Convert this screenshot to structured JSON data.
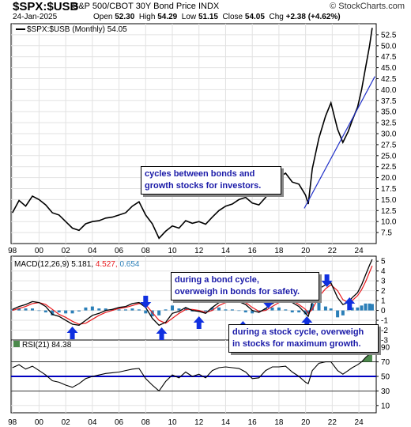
{
  "header": {
    "symbol": "$SPX:$USB",
    "description": "S&P 500/CBOT 30Y Bond Price INDX",
    "brand": "© StockCharts.com",
    "date": "24-Jan-2025",
    "open_label": "Open",
    "open": "52.30",
    "high_label": "High",
    "high": "54.29",
    "low_label": "Low",
    "low": "51.15",
    "close_label": "Close",
    "close": "54.05",
    "chg_label": "Chg",
    "chg": "+2.38 (+4.62%)"
  },
  "annotations": {
    "note1": "cycles between bonds and\ngrowth stocks for investors.",
    "note2": "during a bond cycle,\noverweigh in bonds for safety.",
    "note3": "during a stock cycle, overweigh\nin stocks for maximum growth."
  },
  "colors": {
    "price": "#000000",
    "macd": "#000000",
    "signal": "#e8181c",
    "histogram": "#2b7fb8",
    "trendline": "#2030c8",
    "arrow": "#1030e0",
    "rsi_line": "#000000",
    "rsi_fill": "#4d8a4d",
    "rsi_mid_line": "#0000c0"
  },
  "chart_data": [
    {
      "type": "line",
      "legend": "$SPX:$USB (Monthly) 54.05",
      "x_ticks": [
        "98",
        "00",
        "02",
        "04",
        "06",
        "08",
        "10",
        "12",
        "14",
        "16",
        "18",
        "20",
        "22",
        "24"
      ],
      "y_ticks": [
        "7.5",
        "10.0",
        "12.5",
        "15.0",
        "17.5",
        "20.0",
        "22.5",
        "25.0",
        "27.5",
        "30.0",
        "32.5",
        "35.0",
        "37.5",
        "40.0",
        "42.5",
        "45.0",
        "47.5",
        "50.0",
        "52.5"
      ],
      "ylim": [
        5,
        55
      ],
      "x": [
        1998.0,
        1998.5,
        1999.0,
        1999.5,
        2000.0,
        2000.5,
        2001.0,
        2001.5,
        2002.0,
        2002.5,
        2003.0,
        2003.5,
        2004.0,
        2004.5,
        2005.0,
        2005.5,
        2006.0,
        2006.5,
        2007.0,
        2007.5,
        2008.0,
        2008.5,
        2009.0,
        2009.5,
        2010.0,
        2010.5,
        2011.0,
        2011.5,
        2012.0,
        2012.5,
        2013.0,
        2013.5,
        2014.0,
        2014.5,
        2015.0,
        2015.5,
        2016.0,
        2016.5,
        2017.0,
        2017.5,
        2018.0,
        2018.5,
        2019.0,
        2019.5,
        2020.0,
        2020.2,
        2020.5,
        2021.0,
        2021.5,
        2021.9,
        2022.4,
        2022.8,
        2023.2,
        2023.5,
        2023.9,
        2024.2,
        2024.5,
        2024.8,
        2025.0
      ],
      "values": [
        12.0,
        14.8,
        13.5,
        15.8,
        15.0,
        13.8,
        12.0,
        11.5,
        10.0,
        8.5,
        8.0,
        9.5,
        10.0,
        10.2,
        10.8,
        11.0,
        11.5,
        12.0,
        13.5,
        14.5,
        11.5,
        9.5,
        6.2,
        7.8,
        9.0,
        8.5,
        10.2,
        9.6,
        10.0,
        9.4,
        11.0,
        12.5,
        13.5,
        14.0,
        15.0,
        15.5,
        14.2,
        13.8,
        15.5,
        17.8,
        20.0,
        21.0,
        19.0,
        18.5,
        16.0,
        14.0,
        22.0,
        29.0,
        34.0,
        37.0,
        31.0,
        28.0,
        30.5,
        33.0,
        36.0,
        40.0,
        45.0,
        50.0,
        54.05
      ],
      "trendline": {
        "x": [
          2019.9,
          2025.2
        ],
        "y": [
          13.0,
          43.0
        ]
      }
    },
    {
      "type": "line",
      "legend": "MACD(12,26,9)",
      "values_label": [
        "5.181",
        "4.527",
        "0.654"
      ],
      "y_ticks": [
        "-3",
        "-2",
        "-1",
        "0",
        "1",
        "2",
        "3",
        "4",
        "5"
      ],
      "ylim": [
        -3,
        5.5
      ],
      "series": [
        {
          "name": "MACD",
          "x": [
            1998.0,
            1998.5,
            1999.0,
            1999.5,
            2000.0,
            2000.5,
            2001.0,
            2001.5,
            2002.0,
            2002.5,
            2003.0,
            2003.5,
            2004.0,
            2004.5,
            2005.0,
            2005.5,
            2006.0,
            2006.5,
            2007.0,
            2007.5,
            2008.0,
            2008.5,
            2009.0,
            2009.5,
            2010.0,
            2010.5,
            2011.0,
            2011.5,
            2012.0,
            2012.5,
            2013.0,
            2013.5,
            2014.0,
            2014.5,
            2015.0,
            2015.5,
            2016.0,
            2016.5,
            2017.0,
            2017.5,
            2018.0,
            2018.5,
            2019.0,
            2019.5,
            2020.0,
            2020.2,
            2020.5,
            2021.0,
            2021.5,
            2021.9,
            2022.4,
            2022.8,
            2023.2,
            2023.5,
            2023.9,
            2024.2,
            2024.5,
            2024.8,
            2025.0
          ],
          "values": [
            0.1,
            0.4,
            0.6,
            0.9,
            0.8,
            0.4,
            -0.4,
            -0.6,
            -1.0,
            -1.4,
            -1.5,
            -1.0,
            -0.5,
            -0.3,
            0.0,
            0.1,
            0.3,
            0.4,
            0.7,
            0.8,
            0.3,
            -0.8,
            -1.5,
            -1.2,
            -0.3,
            -0.1,
            0.3,
            0.0,
            -0.1,
            -0.3,
            0.3,
            0.8,
            0.9,
            1.0,
            0.9,
            0.6,
            0.0,
            -0.2,
            0.2,
            0.7,
            1.1,
            1.2,
            0.8,
            0.4,
            -0.3,
            -0.6,
            0.8,
            2.2,
            2.6,
            2.8,
            1.3,
            0.6,
            0.8,
            1.3,
            1.8,
            2.6,
            3.6,
            4.6,
            5.181
          ]
        },
        {
          "name": "Signal",
          "x": [
            1998.0,
            1998.5,
            1999.0,
            1999.5,
            2000.0,
            2000.5,
            2001.0,
            2001.5,
            2002.0,
            2002.5,
            2003.0,
            2003.5,
            2004.0,
            2004.5,
            2005.0,
            2005.5,
            2006.0,
            2006.5,
            2007.0,
            2007.5,
            2008.0,
            2008.5,
            2009.0,
            2009.5,
            2010.0,
            2010.5,
            2011.0,
            2011.5,
            2012.0,
            2012.5,
            2013.0,
            2013.5,
            2014.0,
            2014.5,
            2015.0,
            2015.5,
            2016.0,
            2016.5,
            2017.0,
            2017.5,
            2018.0,
            2018.5,
            2019.0,
            2019.5,
            2020.0,
            2020.2,
            2020.5,
            2021.0,
            2021.5,
            2021.9,
            2022.4,
            2022.8,
            2023.2,
            2023.5,
            2023.9,
            2024.2,
            2024.5,
            2024.8,
            2025.0
          ],
          "values": [
            0.0,
            0.2,
            0.4,
            0.7,
            0.8,
            0.6,
            0.1,
            -0.4,
            -0.7,
            -1.1,
            -1.4,
            -1.3,
            -0.9,
            -0.5,
            -0.2,
            0.0,
            0.2,
            0.3,
            0.5,
            0.7,
            0.6,
            -0.2,
            -1.0,
            -1.3,
            -0.8,
            -0.3,
            0.1,
            0.1,
            0.0,
            -0.2,
            0.0,
            0.5,
            0.8,
            0.9,
            0.9,
            0.8,
            0.3,
            -0.1,
            0.0,
            0.4,
            0.8,
            1.1,
            1.0,
            0.6,
            0.1,
            -0.3,
            0.1,
            1.4,
            2.2,
            2.6,
            2.0,
            1.1,
            0.8,
            1.0,
            1.5,
            2.1,
            2.9,
            3.9,
            4.527
          ]
        }
      ]
    },
    {
      "type": "line",
      "legend": "RSI(21) 84.38",
      "y_ticks": [
        "10",
        "30",
        "50",
        "70",
        "90"
      ],
      "ylim": [
        0,
        100
      ],
      "reference_lines": [
        30,
        50,
        70
      ],
      "x": [
        1998.0,
        1998.5,
        1999.0,
        1999.5,
        2000.0,
        2000.5,
        2001.0,
        2001.5,
        2002.0,
        2002.5,
        2003.0,
        2003.5,
        2004.0,
        2004.5,
        2005.0,
        2005.5,
        2006.0,
        2006.5,
        2007.0,
        2007.5,
        2008.0,
        2008.5,
        2009.0,
        2009.5,
        2010.0,
        2010.5,
        2011.0,
        2011.5,
        2012.0,
        2012.5,
        2013.0,
        2013.5,
        2014.0,
        2014.5,
        2015.0,
        2015.5,
        2016.0,
        2016.5,
        2017.0,
        2017.5,
        2018.0,
        2018.5,
        2019.0,
        2019.5,
        2020.0,
        2020.2,
        2020.5,
        2021.0,
        2021.5,
        2021.9,
        2022.4,
        2022.8,
        2023.2,
        2023.5,
        2023.9,
        2024.2,
        2024.5,
        2024.8,
        2025.0
      ],
      "values": [
        62,
        66,
        60,
        64,
        58,
        52,
        44,
        42,
        38,
        35,
        40,
        47,
        50,
        52,
        54,
        55,
        56,
        58,
        60,
        61,
        47,
        38,
        30,
        43,
        52,
        48,
        56,
        50,
        53,
        48,
        58,
        62,
        63,
        62,
        61,
        56,
        47,
        48,
        58,
        63,
        63,
        64,
        56,
        50,
        42,
        40,
        58,
        68,
        70,
        70,
        58,
        53,
        58,
        62,
        66,
        70,
        76,
        81,
        84.38
      ]
    }
  ]
}
